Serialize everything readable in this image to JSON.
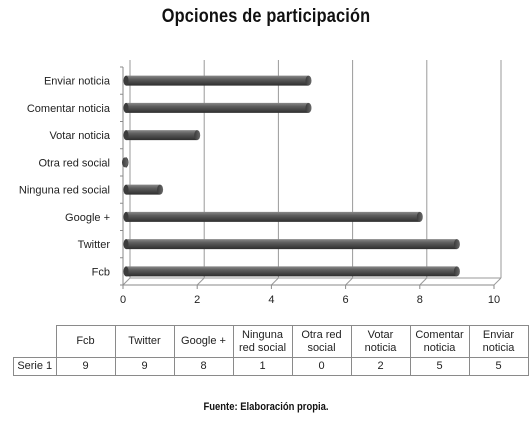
{
  "chart_data": {
    "type": "bar",
    "orientation": "horizontal",
    "title": "Opciones de participación",
    "categories": [
      "Fcb",
      "Twitter",
      "Google +",
      "Ninguna red social",
      "Otra red social",
      "Votar noticia",
      "Comentar noticia",
      "Enviar noticia"
    ],
    "table_headers": [
      "Fcb",
      "Twitter",
      "Google +",
      "Ninguna red social",
      "Otra red social",
      "Votar noticia",
      "Comentar noticia",
      "Enviar noticia"
    ],
    "series": [
      {
        "name": "Serie 1",
        "values": [
          9,
          9,
          8,
          1,
          0,
          2,
          5,
          5
        ]
      }
    ],
    "xlim": [
      0,
      10
    ],
    "xticks": [
      "0",
      "2",
      "4",
      "6",
      "8",
      "10"
    ],
    "grid": true,
    "bar_color": "#555555"
  },
  "source": "Fuente: Elaboración propia."
}
